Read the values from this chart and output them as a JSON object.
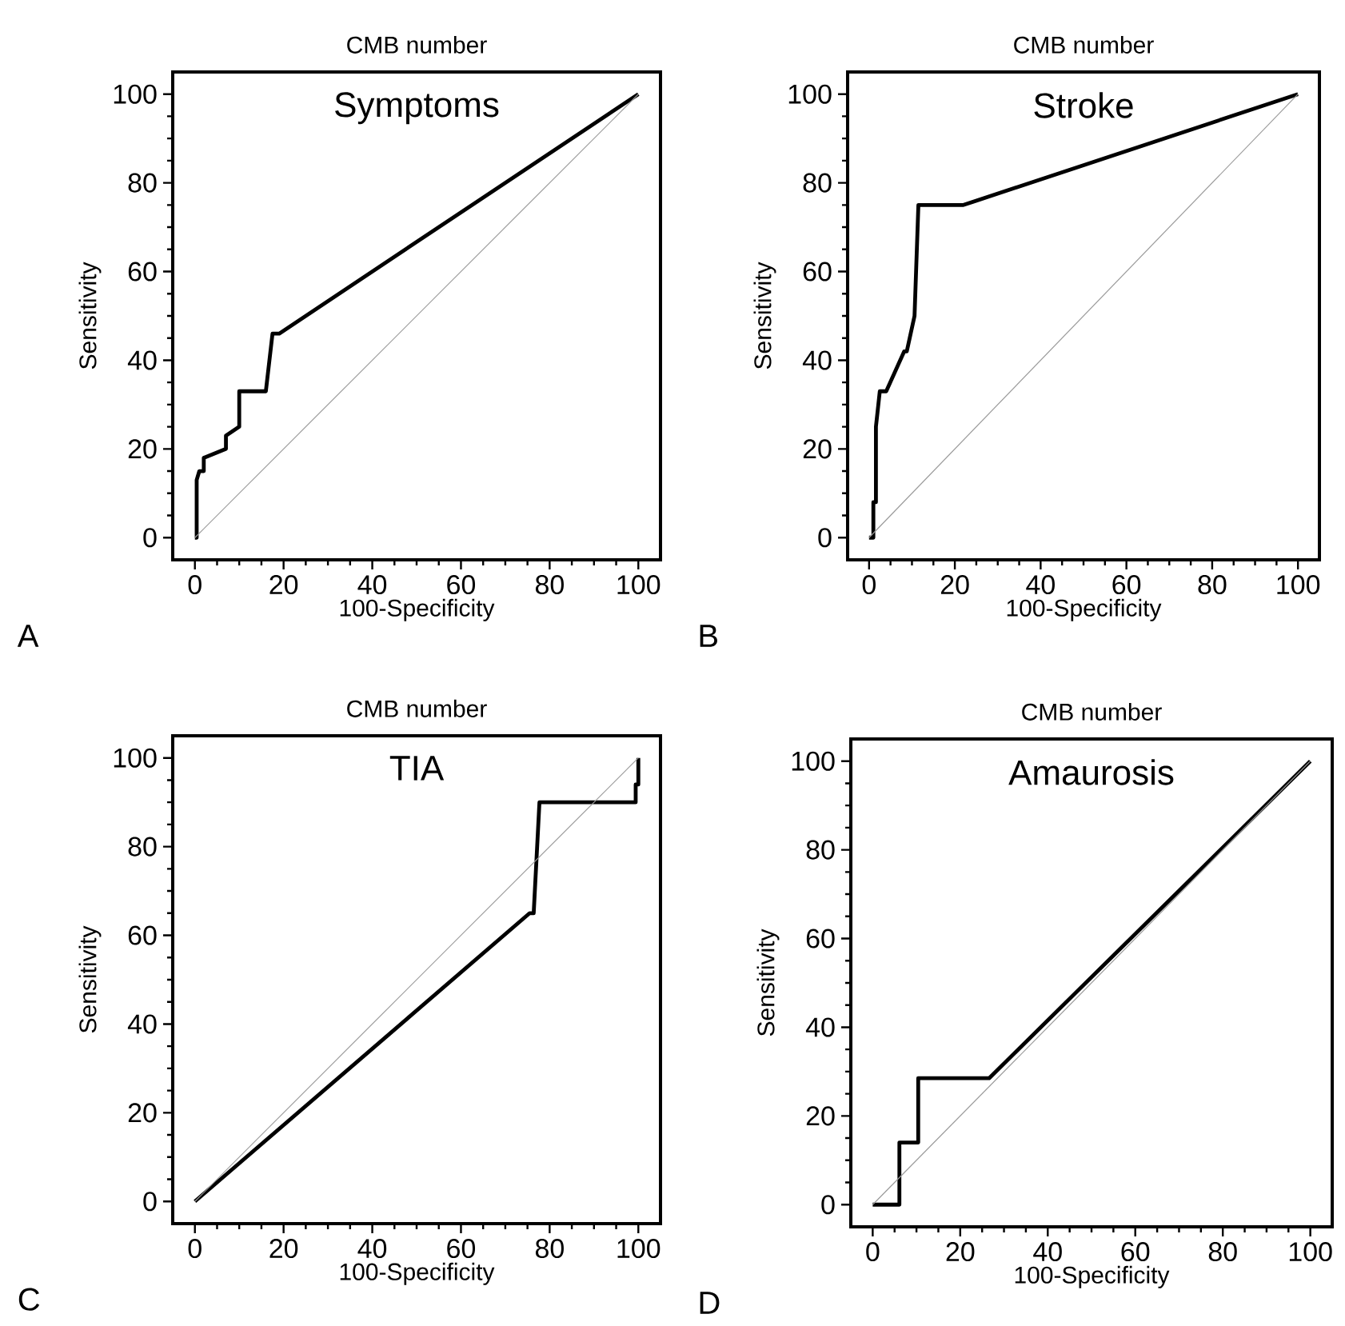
{
  "chart_data": [
    {
      "type": "line",
      "title": "CMB number",
      "subtitle": "Symptoms",
      "xlabel": "100-Specificity",
      "ylabel": "Sensitivity",
      "annotations": [
        "A"
      ],
      "xlim": [
        -5,
        105
      ],
      "ylim": [
        -5,
        105
      ],
      "xticks": [
        0,
        20,
        40,
        60,
        80,
        100
      ],
      "yticks": [
        0,
        20,
        40,
        60,
        80,
        100
      ],
      "series": [
        {
          "color": "#000000",
          "x": [
            0,
            0.4,
            0.4,
            1,
            2,
            2,
            7,
            7,
            10,
            10,
            16,
            17.5,
            19,
            100
          ],
          "values": [
            0,
            0,
            13,
            15,
            15,
            18,
            20,
            23,
            25,
            33,
            33,
            46,
            46,
            100
          ]
        },
        {
          "color": "#9a9a9a",
          "x": [
            0,
            100
          ],
          "values": [
            0,
            100
          ]
        }
      ]
    },
    {
      "type": "line",
      "title": "CMB number",
      "subtitle": "Stroke",
      "xlabel": "100-Specificity",
      "ylabel": "Sensitivity",
      "annotations": [
        "B"
      ],
      "xlim": [
        -5,
        105
      ],
      "ylim": [
        -5,
        105
      ],
      "xticks": [
        0,
        20,
        40,
        60,
        80,
        100
      ],
      "yticks": [
        0,
        20,
        40,
        60,
        80,
        100
      ],
      "series": [
        {
          "color": "#000000",
          "x": [
            0,
            1,
            1,
            1.6,
            1.6,
            2.5,
            4,
            8.2,
            8.8,
            10.6,
            11.5,
            22,
            100
          ],
          "values": [
            0,
            0,
            8,
            8,
            25,
            33,
            33,
            42,
            42,
            50,
            75,
            75,
            100
          ]
        },
        {
          "color": "#9a9a9a",
          "x": [
            0,
            100
          ],
          "values": [
            0,
            100
          ]
        }
      ]
    },
    {
      "type": "line",
      "title": "CMB number",
      "subtitle": "TIA",
      "xlabel": "100-Specificity",
      "ylabel": "Sensitivity",
      "annotations": [
        "C"
      ],
      "xlim": [
        -5,
        105
      ],
      "ylim": [
        -5,
        105
      ],
      "xticks": [
        0,
        20,
        40,
        60,
        80,
        100
      ],
      "yticks": [
        0,
        20,
        40,
        60,
        80,
        100
      ],
      "series": [
        {
          "color": "#000000",
          "x": [
            0,
            75.5,
            76.4,
            77.7,
            99.4,
            99.4,
            100,
            100
          ],
          "values": [
            0,
            65,
            65,
            90,
            90,
            94,
            94,
            100
          ]
        },
        {
          "color": "#9a9a9a",
          "x": [
            0,
            100
          ],
          "values": [
            0,
            100
          ]
        }
      ]
    },
    {
      "type": "line",
      "title": "CMB number",
      "subtitle": "Amaurosis",
      "xlabel": "100-Specificity",
      "ylabel": "Sensitivity",
      "annotations": [
        "D"
      ],
      "xlim": [
        -5,
        105
      ],
      "ylim": [
        -5,
        105
      ],
      "xticks": [
        0,
        20,
        40,
        60,
        80,
        100
      ],
      "yticks": [
        0,
        20,
        40,
        60,
        80,
        100
      ],
      "series": [
        {
          "color": "#000000",
          "x": [
            0,
            6.1,
            6.1,
            10.4,
            10.4,
            26.6,
            100
          ],
          "values": [
            0,
            0,
            14,
            14,
            28.5,
            28.5,
            100
          ]
        },
        {
          "color": "#9a9a9a",
          "x": [
            0,
            100
          ],
          "values": [
            0,
            100
          ]
        }
      ]
    }
  ]
}
